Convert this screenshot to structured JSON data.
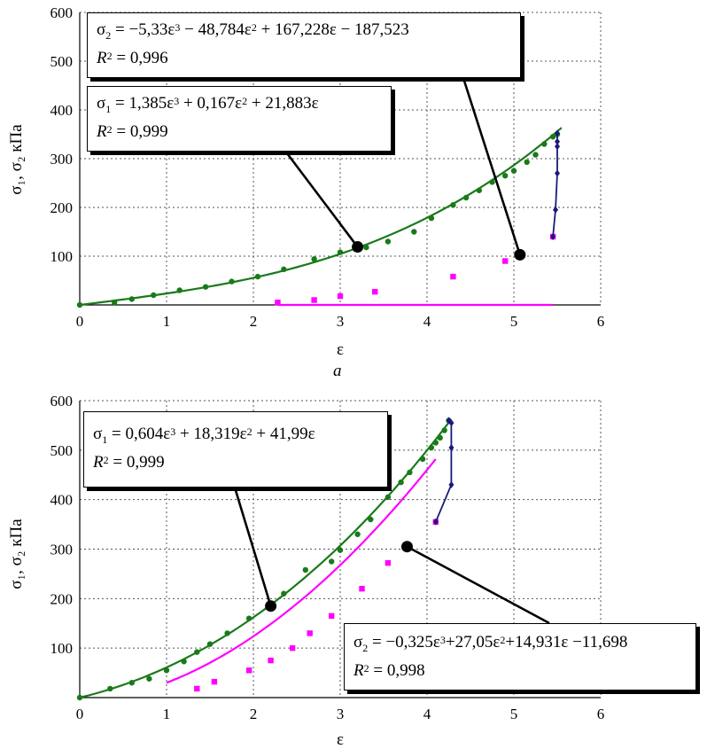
{
  "chart_data": [
    {
      "type": "scatter",
      "panel_label": "a",
      "xlabel": "ε",
      "ylabel": "σ₁, σ₂ кПа",
      "xlim": [
        0,
        6
      ],
      "ylim": [
        0,
        600
      ],
      "xticks": [
        "0",
        "1",
        "2",
        "3",
        "4",
        "5",
        "6"
      ],
      "yticks": [
        "100",
        "200",
        "300",
        "400",
        "500",
        "600"
      ],
      "grid": "dotted",
      "series": [
        {
          "key": "sigma1",
          "color": "#1a7a1a",
          "marker": "circle",
          "x": [
            0,
            0.4,
            0.6,
            0.85,
            1.15,
            1.45,
            1.75,
            2.05,
            2.35,
            2.7,
            3.0,
            3.3,
            3.55,
            3.85,
            4.05,
            4.3,
            4.45,
            4.6,
            4.75,
            4.9,
            5.0,
            5.15,
            5.25,
            5.35,
            5.45,
            5.5
          ],
          "y": [
            0,
            5,
            12,
            20,
            30,
            37,
            48,
            58,
            73,
            94,
            108,
            118,
            130,
            150,
            178,
            205,
            220,
            235,
            252,
            265,
            275,
            293,
            308,
            330,
            345,
            350
          ]
        },
        {
          "key": "sigma2",
          "color": "#ff00ff",
          "marker": "square",
          "x": [
            2.28,
            2.7,
            3.0,
            3.4,
            4.3,
            4.9,
            5.45
          ],
          "y": [
            5,
            10,
            18,
            27,
            58,
            90,
            140
          ]
        },
        {
          "key": "unload",
          "color": "#1a1a7a",
          "marker": "diamond",
          "x": [
            5.45,
            5.48,
            5.5,
            5.5,
            5.5,
            5.5
          ],
          "y": [
            140,
            195,
            270,
            325,
            335,
            352
          ]
        }
      ],
      "fits": {
        "sigma1": {
          "a3": 1.385,
          "a2": 0.167,
          "a1": 21.883,
          "a0": 0,
          "x_range": [
            0,
            5.55
          ]
        },
        "sigma2": {
          "a3": -5.33,
          "a2": -48.784,
          "a1": 167.228,
          "a0": -187.523,
          "x_range": [
            2.28,
            5.45
          ]
        }
      },
      "callouts": [
        {
          "series": "sigma1",
          "point": [
            3.2,
            119
          ]
        },
        {
          "series": "sigma2",
          "point": [
            5.07,
            103
          ]
        }
      ],
      "annotations": {
        "sigma2": {
          "coef_text": " = −5,33ε",
          "mid1": " − 48,784ε",
          "mid2": " + 167,228ε − 187,523",
          "r2_value": " = 0,996"
        },
        "sigma1": {
          "coef_text": " = 1,385ε",
          "mid1": " + 0,167ε",
          "mid2": " + 21,883ε",
          "r2_value": " = 0,999"
        }
      }
    },
    {
      "type": "scatter",
      "panel_label": "",
      "xlabel": "ε",
      "ylabel": "σ₁, σ₂ кПа",
      "xlim": [
        0,
        6
      ],
      "ylim": [
        0,
        600
      ],
      "xticks": [
        "0",
        "1",
        "2",
        "3",
        "4",
        "5",
        "6"
      ],
      "yticks": [
        "100",
        "200",
        "300",
        "400",
        "500",
        "600"
      ],
      "grid": "dotted",
      "series": [
        {
          "key": "sigma1",
          "color": "#1a7a1a",
          "marker": "circle",
          "x": [
            0,
            0.35,
            0.6,
            0.8,
            1.0,
            1.2,
            1.35,
            1.5,
            1.7,
            1.95,
            2.2,
            2.35,
            2.6,
            2.9,
            3.0,
            3.2,
            3.35,
            3.55,
            3.7,
            3.8,
            3.95,
            4.05,
            4.1,
            4.15,
            4.2,
            4.25
          ],
          "y": [
            0,
            18,
            30,
            38,
            55,
            73,
            92,
            108,
            130,
            160,
            190,
            210,
            258,
            275,
            298,
            330,
            360,
            405,
            435,
            455,
            482,
            505,
            515,
            525,
            540,
            560
          ]
        },
        {
          "key": "sigma2",
          "color": "#ff00ff",
          "marker": "square",
          "x": [
            1.35,
            1.55,
            1.95,
            2.2,
            2.45,
            2.65,
            2.9,
            3.25,
            3.55,
            3.8,
            4.1
          ],
          "y": [
            18,
            32,
            55,
            75,
            100,
            130,
            165,
            220,
            272,
            305,
            355
          ]
        },
        {
          "key": "unload",
          "color": "#1a1a7a",
          "marker": "diamond",
          "x": [
            4.1,
            4.28,
            4.28,
            4.28,
            4.25
          ],
          "y": [
            355,
            430,
            505,
            555,
            560
          ]
        }
      ],
      "fits": {
        "sigma1": {
          "a3": 0.604,
          "a2": 18.319,
          "a1": 41.99,
          "a0": 0,
          "x_range": [
            0,
            4.28
          ]
        },
        "sigma2": {
          "a3": -0.325,
          "a2": 27.05,
          "a1": 14.931,
          "a0": -11.698,
          "x_range": [
            1.0,
            4.1
          ]
        }
      },
      "callouts": [
        {
          "series": "sigma1",
          "point": [
            2.2,
            185
          ]
        },
        {
          "series": "sigma2",
          "point": [
            3.77,
            305
          ]
        }
      ],
      "annotations": {
        "sigma1": {
          "coef_text": " = 0,604ε",
          "mid1": " + 18,319ε",
          "mid2": " + 41,99ε",
          "r2_value": " = 0,999"
        },
        "sigma2": {
          "coef_text": " = −0,325ε",
          "mid1": "+27,05ε",
          "mid2": "+14,931ε −11,698",
          "r2_value": " = 0,998"
        }
      }
    }
  ]
}
